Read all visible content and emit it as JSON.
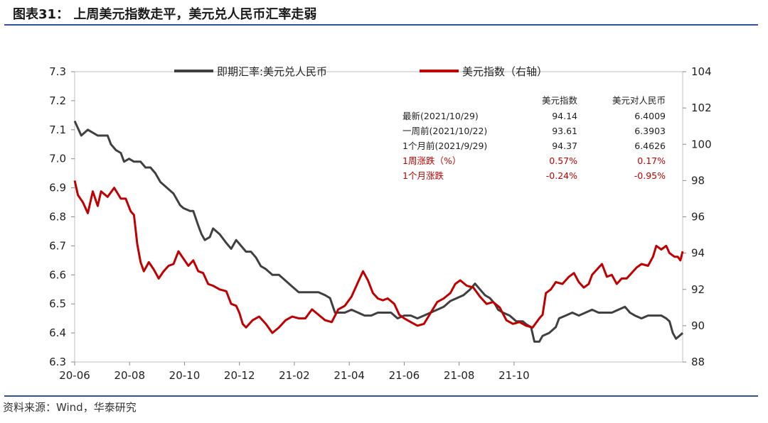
{
  "title": "图表31： 上周美元指数走平，美元兑人民币汇率走弱",
  "source": "资料来源：Wind，华泰研究",
  "colors": {
    "usdcny": "#404040",
    "dxy": "#c00000",
    "rule": "#2f5597",
    "red_text": "#c00000"
  },
  "table": {
    "headers": [
      "",
      "美元指数",
      "美元对人民币"
    ],
    "rows": [
      {
        "label": "最新(2021/10/29)",
        "dxy": "94.14",
        "cny": "6.4009",
        "red": false
      },
      {
        "label": "一周前(2021/10/22)",
        "dxy": "93.61",
        "cny": "6.3903",
        "red": false
      },
      {
        "label": "1个月前(2021/9/29)",
        "dxy": "94.37",
        "cny": "6.4626",
        "red": false
      },
      {
        "label": "1周涨跌（%）",
        "dxy": "0.57%",
        "cny": "0.17%",
        "red": true
      },
      {
        "label": "1个月涨跌",
        "dxy": "-0.24%",
        "cny": "-0.95%",
        "red": true
      }
    ]
  },
  "chart_data": {
    "type": "line",
    "x_ticks": [
      "20-06",
      "20-08",
      "20-10",
      "20-12",
      "21-02",
      "21-04",
      "21-06",
      "21-08",
      "21-10"
    ],
    "y_left": {
      "ticks": [
        "6.3",
        "6.4",
        "6.5",
        "6.6",
        "6.7",
        "6.8",
        "6.9",
        "7.0",
        "7.1",
        "7.2",
        "7.3"
      ],
      "range": [
        6.3,
        7.3
      ]
    },
    "y_right": {
      "ticks": [
        "88",
        "90",
        "92",
        "94",
        "96",
        "98",
        "100",
        "102",
        "104"
      ],
      "range": [
        88,
        104
      ]
    },
    "x_range": [
      2020.0,
      2021.845
    ],
    "series": [
      {
        "name": "即期汇率:美元兑人民币",
        "axis": "left",
        "points": [
          [
            2020.0,
            7.13
          ],
          [
            2020.02,
            7.08
          ],
          [
            2020.04,
            7.1
          ],
          [
            2020.07,
            7.08
          ],
          [
            2020.1,
            7.08
          ],
          [
            2020.11,
            7.05
          ],
          [
            2020.125,
            7.03
          ],
          [
            2020.14,
            7.02
          ],
          [
            2020.15,
            6.99
          ],
          [
            2020.165,
            7.0
          ],
          [
            2020.18,
            6.99
          ],
          [
            2020.2,
            6.99
          ],
          [
            2020.215,
            6.97
          ],
          [
            2020.23,
            6.97
          ],
          [
            2020.245,
            6.95
          ],
          [
            2020.26,
            6.92
          ],
          [
            2020.28,
            6.9
          ],
          [
            2020.3,
            6.88
          ],
          [
            2020.32,
            6.84
          ],
          [
            2020.33,
            6.83
          ],
          [
            2020.35,
            6.82
          ],
          [
            2020.36,
            6.82
          ],
          [
            2020.375,
            6.77
          ],
          [
            2020.385,
            6.74
          ],
          [
            2020.395,
            6.72
          ],
          [
            2020.41,
            6.73
          ],
          [
            2020.42,
            6.76
          ],
          [
            2020.44,
            6.74
          ],
          [
            2020.46,
            6.71
          ],
          [
            2020.475,
            6.69
          ],
          [
            2020.49,
            6.72
          ],
          [
            2020.505,
            6.7
          ],
          [
            2020.52,
            6.68
          ],
          [
            2020.535,
            6.68
          ],
          [
            2020.55,
            6.66
          ],
          [
            2020.565,
            6.63
          ],
          [
            2020.58,
            6.62
          ],
          [
            2020.6,
            6.6
          ],
          [
            2020.62,
            6.6
          ],
          [
            2020.64,
            6.58
          ],
          [
            2020.66,
            6.56
          ],
          [
            2020.68,
            6.54
          ],
          [
            2020.7,
            6.54
          ],
          [
            2020.72,
            6.54
          ],
          [
            2020.74,
            6.54
          ],
          [
            2020.76,
            6.53
          ],
          [
            2020.775,
            6.52
          ],
          [
            2020.79,
            6.47
          ],
          [
            2020.8,
            6.47
          ],
          [
            2020.82,
            6.47
          ],
          [
            2020.84,
            6.48
          ],
          [
            2020.86,
            6.47
          ],
          [
            2020.88,
            6.46
          ],
          [
            2020.9,
            6.46
          ],
          [
            2020.92,
            6.47
          ],
          [
            2020.94,
            6.47
          ],
          [
            2020.96,
            6.47
          ],
          [
            2020.98,
            6.45
          ],
          [
            2021.0,
            6.46
          ],
          [
            2021.02,
            6.46
          ],
          [
            2021.04,
            6.45
          ],
          [
            2021.06,
            6.46
          ],
          [
            2021.08,
            6.47
          ],
          [
            2021.1,
            6.48
          ],
          [
            2021.12,
            6.49
          ],
          [
            2021.14,
            6.51
          ],
          [
            2021.16,
            6.52
          ],
          [
            2021.18,
            6.53
          ],
          [
            2021.2,
            6.55
          ],
          [
            2021.215,
            6.57
          ],
          [
            2021.23,
            6.55
          ],
          [
            2021.245,
            6.53
          ],
          [
            2021.26,
            6.52
          ],
          [
            2021.275,
            6.5
          ],
          [
            2021.285,
            6.48
          ],
          [
            2021.3,
            6.47
          ],
          [
            2021.32,
            6.46
          ],
          [
            2021.34,
            6.44
          ],
          [
            2021.36,
            6.44
          ],
          [
            2021.37,
            6.43
          ],
          [
            2021.385,
            6.42
          ],
          [
            2021.395,
            6.37
          ],
          [
            2021.41,
            6.37
          ],
          [
            2021.42,
            6.39
          ],
          [
            2021.44,
            6.4
          ],
          [
            2021.46,
            6.42
          ],
          [
            2021.47,
            6.45
          ],
          [
            2021.49,
            6.46
          ],
          [
            2021.51,
            6.47
          ],
          [
            2021.53,
            6.46
          ],
          [
            2021.55,
            6.47
          ],
          [
            2021.57,
            6.48
          ],
          [
            2021.59,
            6.47
          ],
          [
            2021.61,
            6.47
          ],
          [
            2021.63,
            6.47
          ],
          [
            2021.65,
            6.48
          ],
          [
            2021.67,
            6.49
          ],
          [
            2021.685,
            6.47
          ],
          [
            2021.7,
            6.46
          ],
          [
            2021.72,
            6.45
          ],
          [
            2021.74,
            6.46
          ],
          [
            2021.76,
            6.46
          ],
          [
            2021.78,
            6.46
          ],
          [
            2021.795,
            6.45
          ],
          [
            2021.805,
            6.44
          ],
          [
            2021.815,
            6.4
          ],
          [
            2021.825,
            6.38
          ],
          [
            2021.835,
            6.39
          ],
          [
            2021.845,
            6.4
          ]
        ]
      },
      {
        "name": "美元指数（右轴）",
        "axis": "right",
        "points": [
          [
            2020.0,
            98.0
          ],
          [
            2020.01,
            97.2
          ],
          [
            2020.025,
            96.8
          ],
          [
            2020.04,
            96.2
          ],
          [
            2020.055,
            97.4
          ],
          [
            2020.07,
            96.6
          ],
          [
            2020.08,
            97.4
          ],
          [
            2020.1,
            97.1
          ],
          [
            2020.12,
            97.6
          ],
          [
            2020.14,
            97.0
          ],
          [
            2020.155,
            97.0
          ],
          [
            2020.17,
            96.3
          ],
          [
            2020.18,
            96.1
          ],
          [
            2020.19,
            94.5
          ],
          [
            2020.2,
            93.5
          ],
          [
            2020.21,
            93.0
          ],
          [
            2020.225,
            93.5
          ],
          [
            2020.24,
            93.1
          ],
          [
            2020.255,
            92.6
          ],
          [
            2020.27,
            93.0
          ],
          [
            2020.285,
            93.3
          ],
          [
            2020.3,
            93.4
          ],
          [
            2020.315,
            94.1
          ],
          [
            2020.33,
            93.7
          ],
          [
            2020.345,
            93.3
          ],
          [
            2020.36,
            93.6
          ],
          [
            2020.375,
            93.0
          ],
          [
            2020.39,
            92.9
          ],
          [
            2020.405,
            92.3
          ],
          [
            2020.42,
            92.2
          ],
          [
            2020.44,
            92.0
          ],
          [
            2020.46,
            91.9
          ],
          [
            2020.475,
            91.2
          ],
          [
            2020.49,
            91.1
          ],
          [
            2020.5,
            90.7
          ],
          [
            2020.51,
            90.1
          ],
          [
            2020.52,
            89.9
          ],
          [
            2020.54,
            90.3
          ],
          [
            2020.56,
            90.5
          ],
          [
            2020.58,
            90.1
          ],
          [
            2020.6,
            89.6
          ],
          [
            2020.62,
            89.9
          ],
          [
            2020.64,
            90.3
          ],
          [
            2020.66,
            90.5
          ],
          [
            2020.68,
            90.4
          ],
          [
            2020.7,
            90.4
          ],
          [
            2020.72,
            90.9
          ],
          [
            2020.74,
            90.6
          ],
          [
            2020.76,
            90.3
          ],
          [
            2020.78,
            90.2
          ],
          [
            2020.8,
            90.9
          ],
          [
            2020.82,
            91.1
          ],
          [
            2020.84,
            91.6
          ],
          [
            2020.86,
            92.4
          ],
          [
            2020.875,
            93.0
          ],
          [
            2020.89,
            92.5
          ],
          [
            2020.905,
            91.8
          ],
          [
            2020.92,
            91.5
          ],
          [
            2020.935,
            91.4
          ],
          [
            2020.95,
            91.5
          ],
          [
            2020.97,
            91.2
          ],
          [
            2020.985,
            90.6
          ],
          [
            2021.0,
            90.4
          ],
          [
            2021.02,
            90.2
          ],
          [
            2021.04,
            90.0
          ],
          [
            2021.06,
            90.1
          ],
          [
            2021.08,
            90.7
          ],
          [
            2021.1,
            91.3
          ],
          [
            2021.12,
            91.5
          ],
          [
            2021.14,
            91.8
          ],
          [
            2021.155,
            92.3
          ],
          [
            2021.17,
            92.5
          ],
          [
            2021.19,
            92.2
          ],
          [
            2021.21,
            92.1
          ],
          [
            2021.23,
            91.6
          ],
          [
            2021.25,
            91.2
          ],
          [
            2021.27,
            91.3
          ],
          [
            2021.29,
            91.0
          ],
          [
            2021.31,
            90.3
          ],
          [
            2021.33,
            90.1
          ],
          [
            2021.35,
            90.2
          ],
          [
            2021.37,
            90.0
          ],
          [
            2021.39,
            89.9
          ],
          [
            2021.41,
            90.4
          ],
          [
            2021.42,
            90.6
          ],
          [
            2021.43,
            91.8
          ],
          [
            2021.445,
            92.0
          ],
          [
            2021.46,
            92.4
          ],
          [
            2021.48,
            92.3
          ],
          [
            2021.5,
            92.7
          ],
          [
            2021.515,
            92.9
          ],
          [
            2021.53,
            92.4
          ],
          [
            2021.545,
            92.1
          ],
          [
            2021.56,
            92.3
          ],
          [
            2021.57,
            92.8
          ],
          [
            2021.585,
            93.1
          ],
          [
            2021.6,
            93.4
          ],
          [
            2021.615,
            92.7
          ],
          [
            2021.63,
            92.8
          ],
          [
            2021.645,
            92.3
          ],
          [
            2021.66,
            92.6
          ],
          [
            2021.675,
            92.6
          ],
          [
            2021.69,
            92.9
          ],
          [
            2021.705,
            93.2
          ],
          [
            2021.72,
            93.4
          ],
          [
            2021.74,
            93.3
          ],
          [
            2021.755,
            93.8
          ],
          [
            2021.765,
            94.4
          ],
          [
            2021.78,
            94.2
          ],
          [
            2021.795,
            94.4
          ],
          [
            2021.805,
            94.0
          ],
          [
            2021.82,
            93.8
          ],
          [
            2021.83,
            93.8
          ],
          [
            2021.838,
            93.6
          ],
          [
            2021.845,
            94.1
          ]
        ]
      }
    ]
  }
}
